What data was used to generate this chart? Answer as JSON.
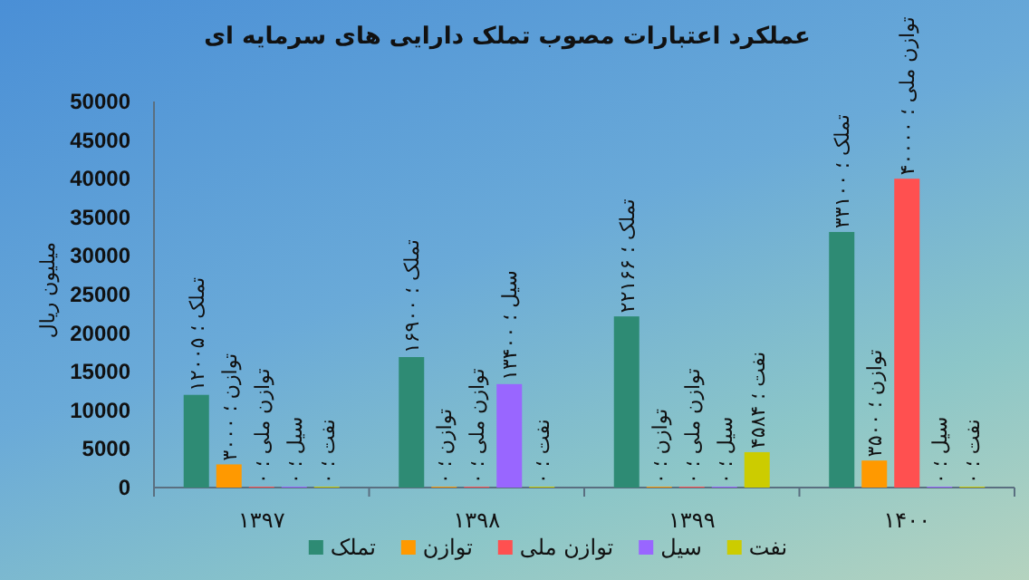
{
  "chart_data": {
    "type": "bar",
    "title": "عملکرد اعتبارات مصوب تملک دارایی های سرمایه ای",
    "ylabel": "میلیون ریال",
    "categories": [
      "۱۳۹۷",
      "۱۳۹۸",
      "۱۳۹۹",
      "۱۴۰۰"
    ],
    "ylim": [
      0,
      50000
    ],
    "yticks": [
      0,
      5000,
      10000,
      15000,
      20000,
      25000,
      30000,
      35000,
      40000,
      45000,
      50000
    ],
    "legend": "bottom",
    "series": [
      {
        "name": "تملک",
        "color": "#2e8b74",
        "values": [
          12005,
          16900,
          22166,
          33100
        ],
        "value_labels": [
          "تملک ؛ ۱۲۰۰۵",
          "تملک ؛ ۱۶۹۰۰",
          "تملک ؛ ۲۲۱۶۶",
          "تملک ؛ ۳۳۱۰۰"
        ]
      },
      {
        "name": "توازن",
        "color": "#ff9900",
        "values": [
          3000,
          0,
          0,
          3500
        ],
        "value_labels": [
          "توازن ؛ ۳۰۰۰",
          "توازن ؛ ۰",
          "توازن ؛ ۰",
          "توازن ؛ ۳۵۰۰"
        ]
      },
      {
        "name": "توازن ملی",
        "color": "#ff5050",
        "values": [
          0,
          0,
          0,
          40000
        ],
        "value_labels": [
          "توازن ملی ؛ ۰",
          "توازن ملی ؛ ۰",
          "توازن ملی ؛ ۰",
          "توازن ملی ؛ ۴۰۰۰۰"
        ]
      },
      {
        "name": "سیل",
        "color": "#9966ff",
        "values": [
          0,
          13400,
          0,
          0
        ],
        "value_labels": [
          "سیل ؛ ۰",
          "سیل ؛ ۱۳۴۰۰",
          "سیل ؛ ۰",
          "سیل ؛ ۰"
        ]
      },
      {
        "name": "نفت",
        "color": "#cccc00",
        "values": [
          0,
          0,
          4584,
          0
        ],
        "value_labels": [
          "نفت ؛ ۰",
          "نفت ؛ ۰",
          "نفت ؛ ۴۵۸۴",
          "نفت ؛ ۰"
        ]
      }
    ]
  }
}
